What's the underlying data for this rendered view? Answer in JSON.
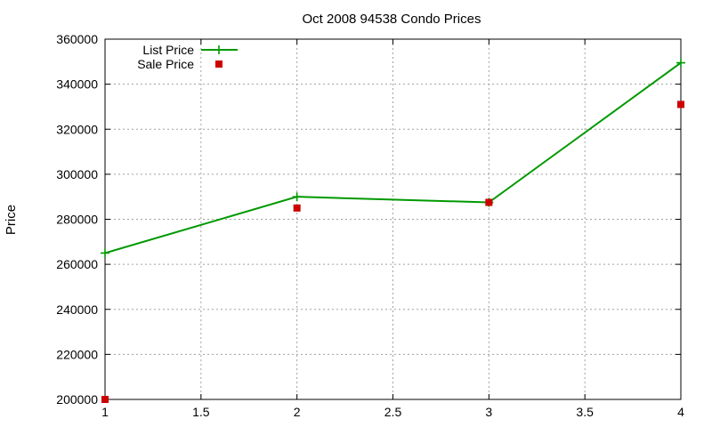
{
  "chart_data": {
    "type": "line",
    "title": "Oct 2008 94538 Condo Prices",
    "xlabel": "",
    "ylabel": "Price",
    "xlim": [
      1,
      4
    ],
    "ylim": [
      200000,
      360000
    ],
    "x_ticks": [
      1,
      1.5,
      2,
      2.5,
      3,
      3.5,
      4
    ],
    "x_tick_labels": [
      "1",
      "1.5",
      "2",
      "2.5",
      "3",
      "3.5",
      "4"
    ],
    "y_ticks": [
      200000,
      220000,
      240000,
      260000,
      280000,
      300000,
      320000,
      340000,
      360000
    ],
    "y_tick_labels": [
      "200000",
      "220000",
      "240000",
      "260000",
      "280000",
      "300000",
      "320000",
      "340000",
      "360000"
    ],
    "grid": true,
    "legend_position": "top-left",
    "series": [
      {
        "name": "List Price",
        "style": "linespoints",
        "color": "#009900",
        "x": [
          1,
          2,
          3,
          4
        ],
        "y": [
          265000,
          290000,
          287500,
          349500
        ]
      },
      {
        "name": "Sale Price",
        "style": "points",
        "color": "#cc0000",
        "x": [
          1,
          2,
          3,
          4
        ],
        "y": [
          200000,
          285000,
          287500,
          331000
        ]
      }
    ]
  }
}
